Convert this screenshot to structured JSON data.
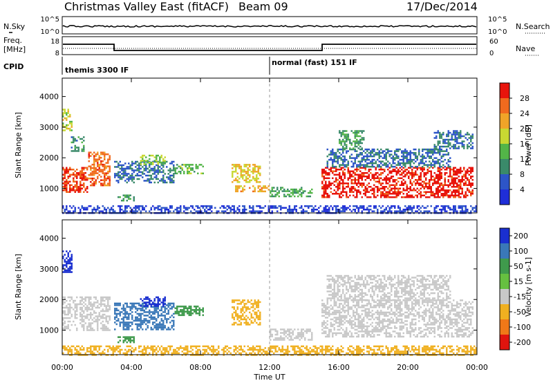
{
  "header": {
    "title": "Christmas Valley East (fitACF)",
    "beam": "Beam 09",
    "date": "17/Dec/2014"
  },
  "strips": {
    "nsky_label": "N.Sky",
    "nsearch_label": "N.Search",
    "nsky_ticks": [
      "10^5",
      "10^0"
    ],
    "nsearch_ticks": [
      "10^5",
      "10^0"
    ],
    "freq_label_line1": "Freq.",
    "freq_label_line2": "[MHz]",
    "freq_ticks": [
      "18",
      "8"
    ],
    "nave_label": "Nave",
    "nave_ticks": [
      "60",
      "0"
    ],
    "cpid_label": "CPID",
    "cpid_segments": [
      "themis 3300 IF",
      "normal (fast) 151 IF"
    ]
  },
  "chart_data": [
    {
      "type": "heatmap",
      "panel": "Power",
      "ylabel": "Slant Range [km]",
      "xlabel": "",
      "xlim_hours": [
        0,
        24
      ],
      "ylim": [
        200,
        4600
      ],
      "y_ticks": [
        1000,
        2000,
        3000,
        4000
      ],
      "x_ticks": [
        "00:00",
        "04:00",
        "08:00",
        "12:00",
        "16:00",
        "20:00",
        "00:00"
      ],
      "colorbar_label": "Power [dB]",
      "colorbar_ticks": [
        "4",
        "8",
        "12",
        "16",
        "20",
        "24",
        "28"
      ],
      "colorbar_range": [
        0,
        32
      ],
      "colors": [
        "#1f2ed8",
        "#2d55c8",
        "#3a8a6a",
        "#53b548",
        "#c8d832",
        "#f0a428",
        "#f06a1e",
        "#e8140c"
      ],
      "regions": [
        {
          "t": [
            0.0,
            1.5
          ],
          "r": [
            900,
            1700
          ],
          "value": 28
        },
        {
          "t": [
            1.5,
            2.8
          ],
          "r": [
            1100,
            2200
          ],
          "value": 26
        },
        {
          "t": [
            0.0,
            0.6
          ],
          "r": [
            2900,
            3600
          ],
          "value": 18
        },
        {
          "t": [
            0.5,
            1.3
          ],
          "r": [
            2200,
            2700
          ],
          "value": 10
        },
        {
          "t": [
            3.0,
            6.5
          ],
          "r": [
            1200,
            1900
          ],
          "value": 8
        },
        {
          "t": [
            4.5,
            6.0
          ],
          "r": [
            1800,
            2100
          ],
          "value": 16
        },
        {
          "t": [
            6.5,
            8.2
          ],
          "r": [
            1500,
            1800
          ],
          "value": 14
        },
        {
          "t": [
            3.2,
            4.2
          ],
          "r": [
            600,
            800
          ],
          "value": 12
        },
        {
          "t": [
            9.8,
            11.5
          ],
          "r": [
            1200,
            1800
          ],
          "value": 20
        },
        {
          "t": [
            10.0,
            12.0
          ],
          "r": [
            900,
            1100
          ],
          "value": 22
        },
        {
          "t": [
            12.0,
            14.5
          ],
          "r": [
            750,
            1050
          ],
          "value": 12
        },
        {
          "t": [
            15.0,
            23.8
          ],
          "r": [
            700,
            1700
          ],
          "value": 30
        },
        {
          "t": [
            15.3,
            22.5
          ],
          "r": [
            1700,
            2300
          ],
          "value": 8
        },
        {
          "t": [
            16.0,
            17.5
          ],
          "r": [
            2300,
            2900
          ],
          "value": 12
        },
        {
          "t": [
            21.5,
            23.8
          ],
          "r": [
            2300,
            2900
          ],
          "value": 8
        },
        {
          "t": [
            0.0,
            24.0
          ],
          "r": [
            200,
            450
          ],
          "value": 4
        }
      ]
    },
    {
      "type": "heatmap",
      "panel": "Velocity",
      "ylabel": "Slant Range [km]",
      "xlabel": "Time UT",
      "xlim_hours": [
        0,
        24
      ],
      "ylim": [
        200,
        4600
      ],
      "y_ticks": [
        1000,
        2000,
        3000,
        4000
      ],
      "x_ticks": [
        "00:00",
        "04:00",
        "08:00",
        "12:00",
        "16:00",
        "20:00",
        "00:00"
      ],
      "colorbar_label": "Velocity [m s-1]",
      "colorbar_ticks": [
        "200",
        "100",
        "50",
        "15",
        "-15",
        "-50",
        "-100",
        "-200"
      ],
      "colors": [
        "#1a2fd0",
        "#3a78b8",
        "#3f9a4c",
        "#66c040",
        "#c8c8c8",
        "#f0b020",
        "#f07818",
        "#e0140e"
      ],
      "regions": [
        {
          "t": [
            0.0,
            2.8
          ],
          "r": [
            1000,
            2100
          ],
          "value": 0
        },
        {
          "t": [
            0.0,
            0.6
          ],
          "r": [
            2900,
            3600
          ],
          "value": 200
        },
        {
          "t": [
            3.0,
            6.5
          ],
          "r": [
            1000,
            1900
          ],
          "value": 100
        },
        {
          "t": [
            4.5,
            6.0
          ],
          "r": [
            1800,
            2100
          ],
          "value": 200
        },
        {
          "t": [
            6.5,
            8.2
          ],
          "r": [
            1500,
            1800
          ],
          "value": 50
        },
        {
          "t": [
            3.2,
            4.2
          ],
          "r": [
            600,
            800
          ],
          "value": 50
        },
        {
          "t": [
            9.8,
            11.5
          ],
          "r": [
            1200,
            2000
          ],
          "value": -30
        },
        {
          "t": [
            12.0,
            14.5
          ],
          "r": [
            700,
            1050
          ],
          "value": 0
        },
        {
          "t": [
            15.0,
            23.8
          ],
          "r": [
            800,
            2000
          ],
          "value": 0
        },
        {
          "t": [
            15.3,
            22.5
          ],
          "r": [
            2000,
            2800
          ],
          "value": 0
        },
        {
          "t": [
            0.0,
            24.0
          ],
          "r": [
            200,
            500
          ],
          "value": -40
        }
      ]
    }
  ]
}
